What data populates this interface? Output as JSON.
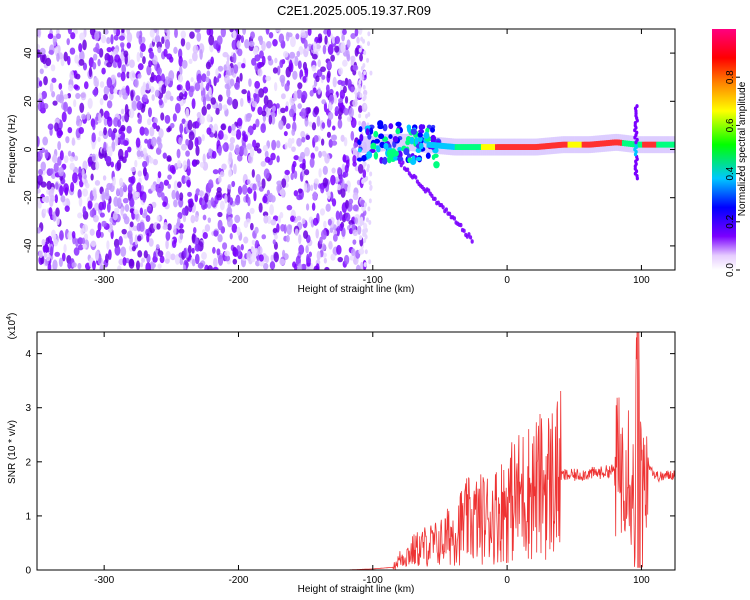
{
  "title": "C2E1.2025.005.19.37.R09",
  "chart_data": [
    {
      "type": "heatmap",
      "title": "C2E1.2025.005.19.37.R09",
      "xlabel": "Height of straight line (km)",
      "ylabel": "Frequency (Hz)",
      "xlim": [
        -350,
        125
      ],
      "ylim": [
        -50,
        50
      ],
      "xticks": [
        -300,
        -200,
        -100,
        0,
        100
      ],
      "yticks": [
        -40,
        -20,
        0,
        20,
        40
      ],
      "colorbar": {
        "label": "Normalized spectral amplitude",
        "range": [
          0,
          1
        ],
        "ticks": [
          "0.0",
          "0.2",
          "0.4",
          "0.6",
          "0.8"
        ],
        "colors": [
          "#ffffff",
          "#7a00ff",
          "#0000ff",
          "#00c8ff",
          "#00ff00",
          "#ffff00",
          "#ff7f00",
          "#ff0000",
          "#ff0080"
        ]
      },
      "features": {
        "noise_region_x": [
          -350,
          -110
        ],
        "signal_band": [
          {
            "x": -105,
            "f": 2
          },
          {
            "x": -90,
            "f": 3
          },
          {
            "x": -75,
            "f": 3
          },
          {
            "x": -60,
            "f": 2
          },
          {
            "x": -40,
            "f": 1
          },
          {
            "x": -20,
            "f": 1
          },
          {
            "x": 0,
            "f": 1
          },
          {
            "x": 20,
            "f": 1
          },
          {
            "x": 40,
            "f": 2
          },
          {
            "x": 60,
            "f": 2
          },
          {
            "x": 80,
            "f": 3
          },
          {
            "x": 95,
            "f": 2
          },
          {
            "x": 110,
            "f": 2
          },
          {
            "x": 125,
            "f": 2
          }
        ]
      }
    },
    {
      "type": "line",
      "xlabel": "Height of straight line (km)",
      "ylabel": "SNR (10 * v/v)",
      "yscale_label": "(x10",
      "yscale_exp": "4",
      "yscale_close": ")",
      "xlim": [
        -350,
        125
      ],
      "ylim": [
        0,
        4.4
      ],
      "xticks": [
        -300,
        -200,
        -100,
        0,
        100
      ],
      "yticks": [
        0,
        1,
        2,
        3,
        4
      ],
      "color": "#ee3333",
      "series": [
        {
          "x": [
            -350,
            -120,
            -100,
            -85,
            -80,
            -70,
            -60,
            -50,
            -40,
            -30,
            -20,
            -10,
            0,
            10,
            20,
            30,
            40,
            50,
            60,
            70,
            80,
            85,
            90,
            93,
            95,
            97,
            100,
            105,
            110,
            115,
            120,
            125
          ],
          "y": [
            0.0,
            0.0,
            0.02,
            0.05,
            0.2,
            0.35,
            0.45,
            0.5,
            0.7,
            0.9,
            0.95,
            1.0,
            1.2,
            1.4,
            1.5,
            1.6,
            1.75,
            1.75,
            1.78,
            1.8,
            1.85,
            1.9,
            2.2,
            1.6,
            1.0,
            4.3,
            1.8,
            2.0,
            1.75,
            1.72,
            1.75,
            1.78
          ]
        }
      ]
    }
  ]
}
